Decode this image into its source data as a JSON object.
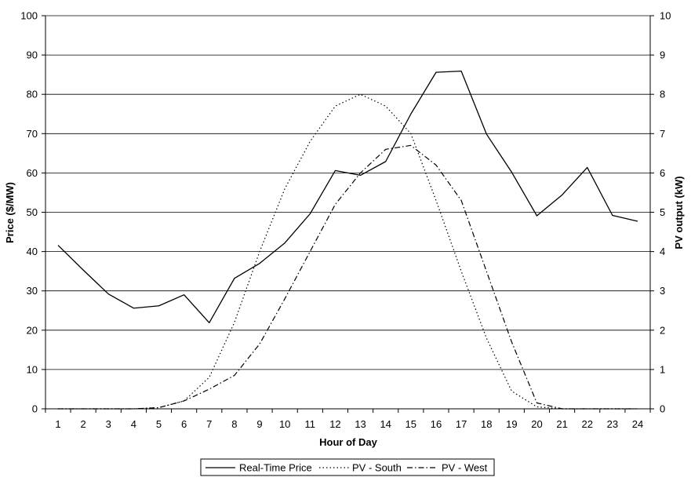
{
  "chart_data": {
    "type": "line",
    "xlabel": "Hour of Day",
    "ylabel": "Price ($/MW)",
    "y2label": "PV output (kW)",
    "ylim": [
      0,
      100
    ],
    "y2lim": [
      0,
      10
    ],
    "grid": true,
    "legend_position": "bottom",
    "x": [
      1,
      2,
      3,
      4,
      5,
      6,
      7,
      8,
      9,
      10,
      11,
      12,
      13,
      14,
      15,
      16,
      17,
      18,
      19,
      20,
      21,
      22,
      23,
      24
    ],
    "x_tick_labels": [
      "1",
      "2",
      "3",
      "4",
      "5",
      "6",
      "7",
      "8",
      "9",
      "10",
      "11",
      "12",
      "13",
      "14",
      "15",
      "16",
      "17",
      "18",
      "19",
      "20",
      "21",
      "22",
      "23",
      "24"
    ],
    "y_tick_labels": [
      "0",
      "10",
      "20",
      "30",
      "40",
      "50",
      "60",
      "70",
      "80",
      "90",
      "100"
    ],
    "y2_tick_labels": [
      "0",
      "1",
      "2",
      "3",
      "4",
      "5",
      "6",
      "7",
      "8",
      "9",
      "10"
    ],
    "series": [
      {
        "name": "Real-Time Price",
        "axis": "left",
        "dash": "solid",
        "values": [
          41.6,
          35.3,
          29.2,
          25.6,
          26.2,
          29.0,
          21.9,
          33.2,
          37.0,
          42.2,
          49.6,
          60.6,
          59.4,
          62.9,
          75.0,
          85.6,
          85.9,
          69.9,
          60.2,
          49.1,
          54.4,
          61.4,
          49.2,
          47.7
        ]
      },
      {
        "name": "PV - South",
        "axis": "right",
        "dash": "dotted",
        "values": [
          0,
          0,
          0,
          0,
          0.03,
          0.2,
          0.8,
          2.2,
          4.0,
          5.6,
          6.8,
          7.7,
          8.0,
          7.7,
          7.0,
          5.3,
          3.5,
          1.8,
          0.45,
          0.05,
          0,
          0,
          0,
          0
        ]
      },
      {
        "name": "PV - West",
        "axis": "right",
        "dash": "dashdot",
        "values": [
          0,
          0,
          0,
          0,
          0.03,
          0.2,
          0.5,
          0.85,
          1.65,
          2.8,
          4.0,
          5.2,
          6.0,
          6.6,
          6.7,
          6.2,
          5.3,
          3.5,
          1.7,
          0.15,
          0,
          0,
          0,
          0
        ]
      }
    ]
  },
  "colors": {
    "line": "#000000",
    "grid": "#000000",
    "background": "#ffffff"
  }
}
